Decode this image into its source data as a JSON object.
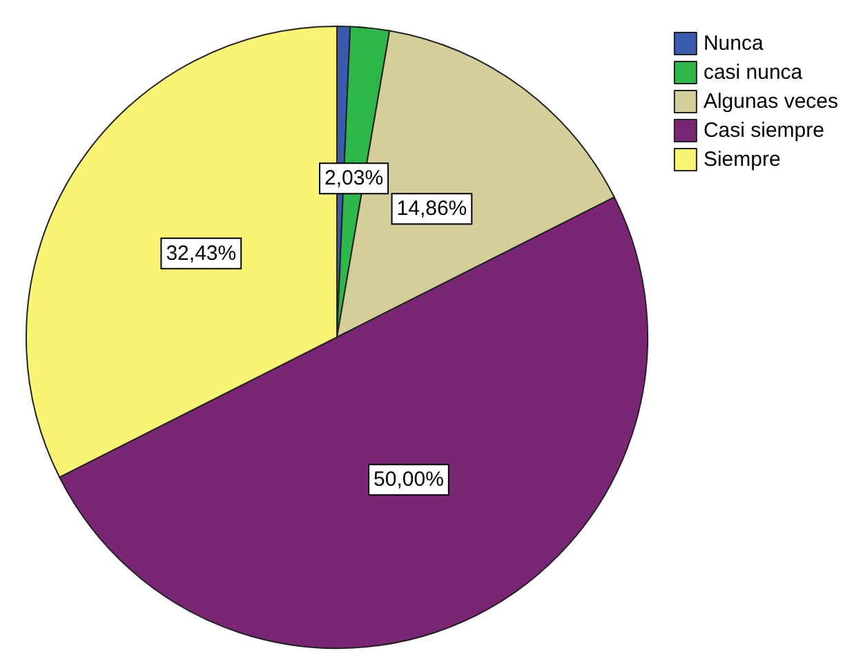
{
  "chart_data": {
    "type": "pie",
    "categories": [
      "Nunca",
      "casi nunca",
      "Algunas veces",
      "Casi siempre",
      "Siempre"
    ],
    "values": [
      0.68,
      2.03,
      14.86,
      50.0,
      32.43
    ],
    "value_labels": [
      null,
      "2,03%",
      "14,86%",
      "50,00%",
      "32,43%"
    ],
    "colors": [
      "#3a5bb0",
      "#2db84a",
      "#d4cf9a",
      "#7b2577",
      "#f8f575"
    ],
    "legend": "top right"
  }
}
